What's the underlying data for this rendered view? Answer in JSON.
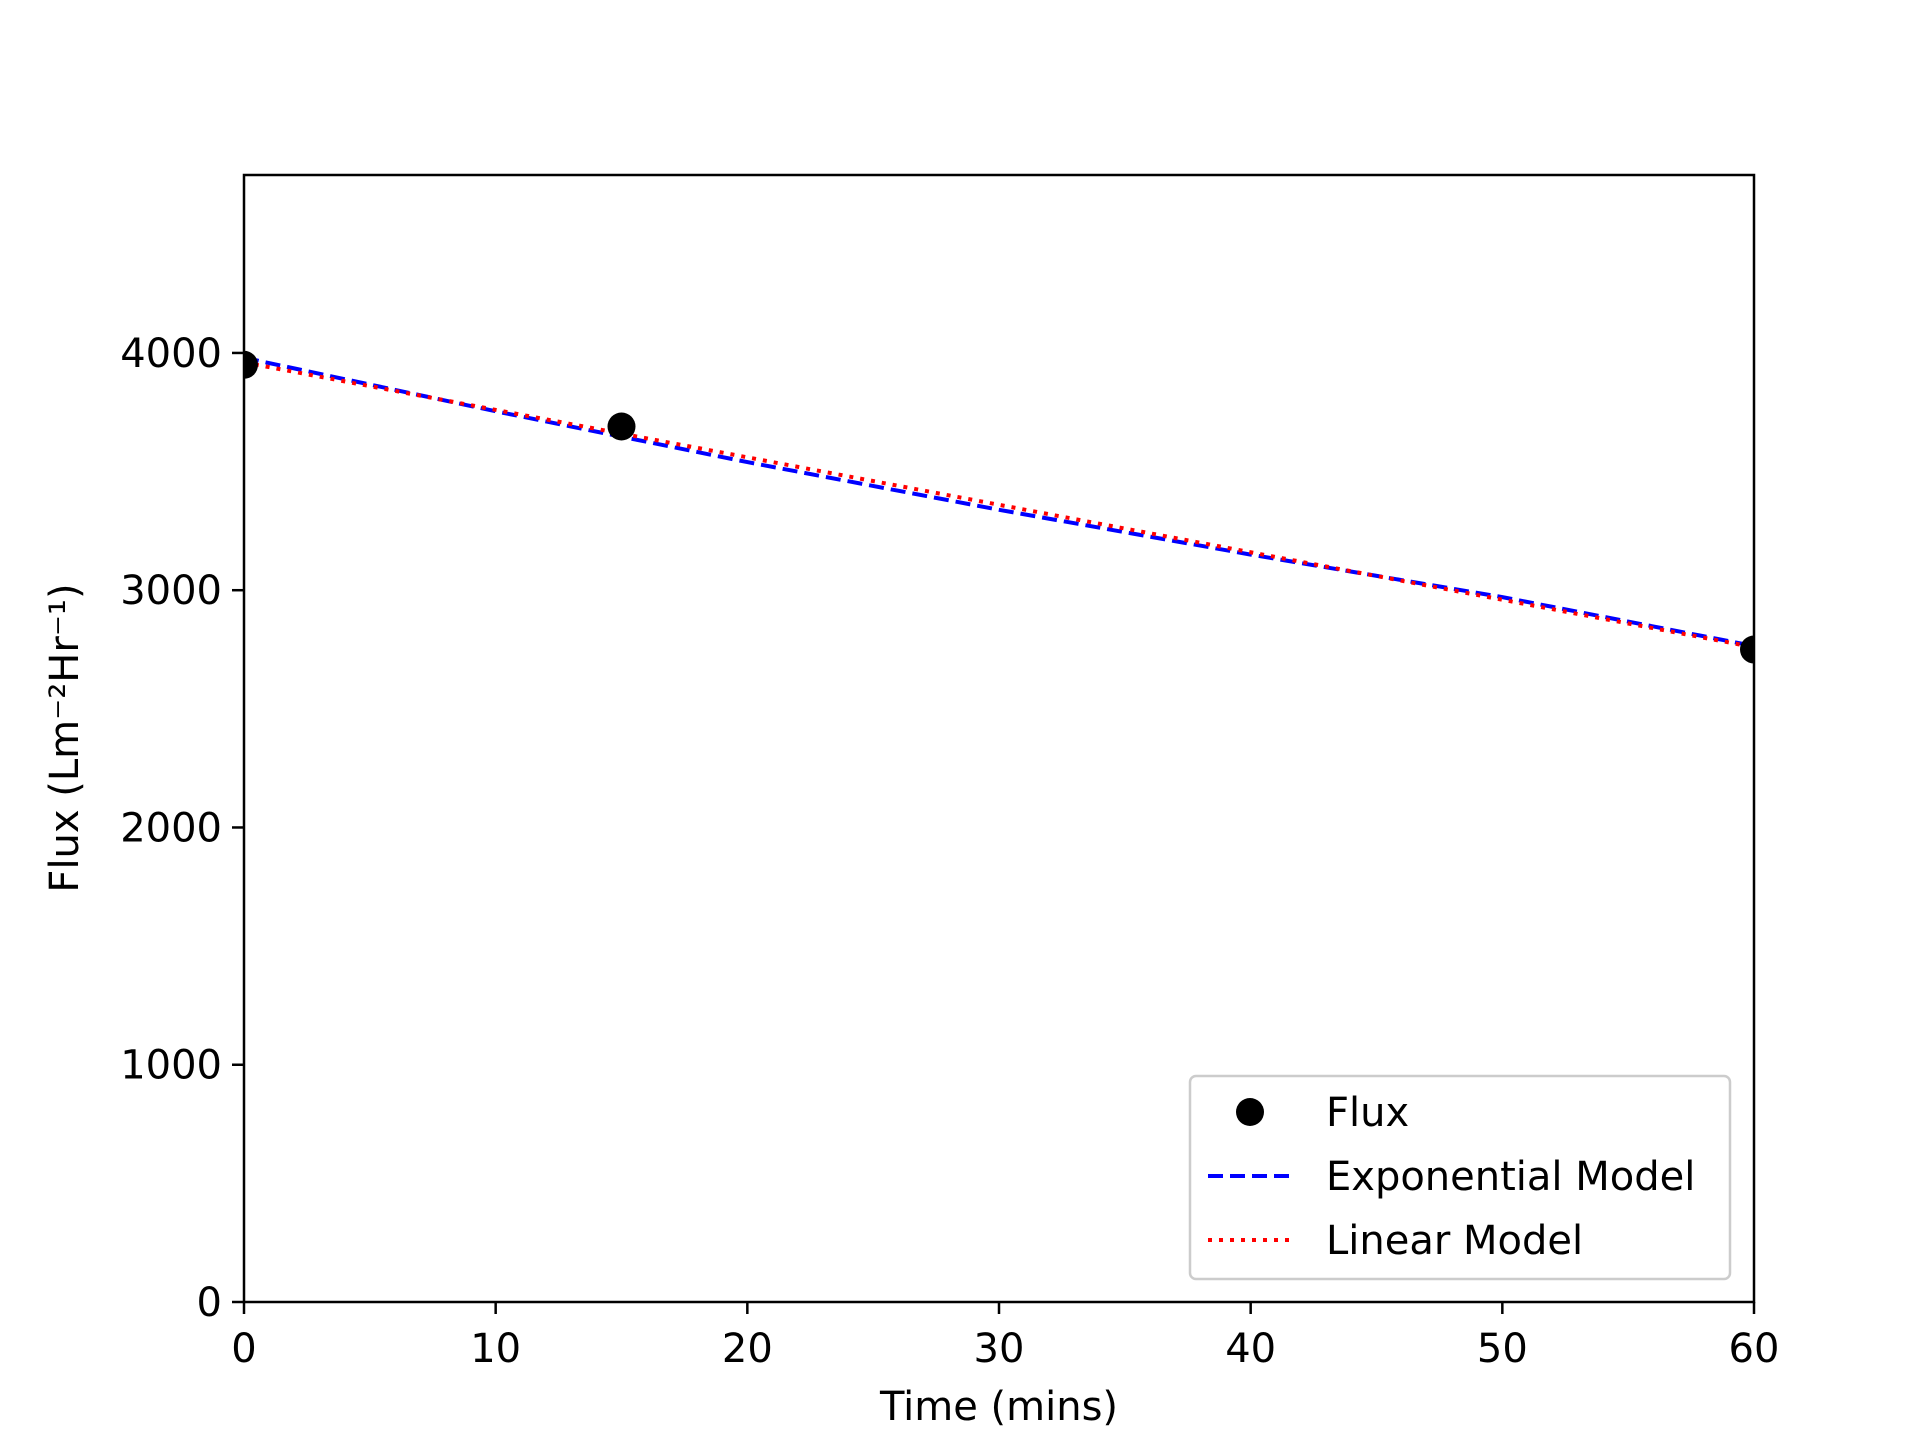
{
  "chart_data": {
    "type": "line",
    "xlabel": "Time (mins)",
    "ylabel": "Flux (Lm⁻²Hr⁻¹)",
    "xlim": [
      0,
      60
    ],
    "ylim": [
      0,
      4750
    ],
    "grid": false,
    "legend_position": "lower-right",
    "x_ticks": [
      {
        "value": 0,
        "label": "0"
      },
      {
        "value": 10,
        "label": "10"
      },
      {
        "value": 20,
        "label": "20"
      },
      {
        "value": 30,
        "label": "30"
      },
      {
        "value": 40,
        "label": "40"
      },
      {
        "value": 50,
        "label": "50"
      },
      {
        "value": 60,
        "label": "60"
      }
    ],
    "y_ticks": [
      {
        "value": 0,
        "label": "0"
      },
      {
        "value": 1000,
        "label": "1000"
      },
      {
        "value": 2000,
        "label": "2000"
      },
      {
        "value": 3000,
        "label": "3000"
      },
      {
        "value": 4000,
        "label": "4000"
      }
    ],
    "series": [
      {
        "name": "Flux",
        "style": "marker",
        "color": "#000000",
        "x": [
          0,
          15,
          60
        ],
        "y": [
          3950,
          3690,
          2750
        ]
      },
      {
        "name": "Exponential Model",
        "style": "dashed",
        "color": "#0000ff",
        "x": [
          0,
          10,
          20,
          30,
          40,
          50,
          60
        ],
        "y": [
          3980,
          3754,
          3540,
          3339,
          3150,
          2971,
          2765
        ]
      },
      {
        "name": "Linear Model",
        "style": "dotted",
        "color": "#ff0000",
        "x": [
          0,
          60
        ],
        "y": [
          3960,
          2760
        ]
      }
    ]
  }
}
